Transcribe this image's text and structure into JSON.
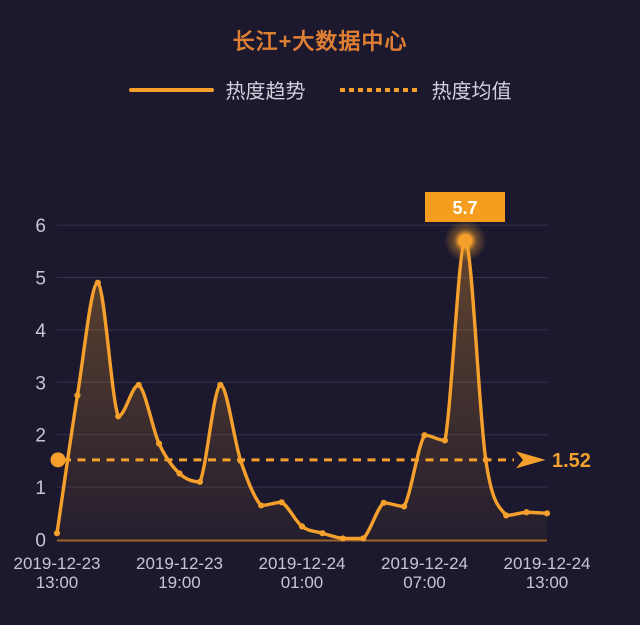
{
  "title": "长江+大数据中心",
  "legend": {
    "trend_label": "热度趋势",
    "mean_label": "热度均值"
  },
  "colors": {
    "background": "#1c192e",
    "title": "#de7f33",
    "accent": "#f5a02c",
    "legend_label": "#ced0da",
    "axis_label": "#c4c7d3",
    "grid": "#36334e",
    "axis_line": "#9a6226",
    "tooltip_bg": "#f59d1e",
    "tooltip_text": "#ffffff",
    "mean_label": "#f2a02e"
  },
  "chart_data": {
    "type": "line",
    "title": "长江+大数据中心",
    "xlabel": "",
    "ylabel": "",
    "ylim": [
      0,
      6
    ],
    "y_ticks": [
      0,
      1,
      2,
      3,
      4,
      5,
      6
    ],
    "grid": true,
    "legend_position": "top",
    "smooth": true,
    "x": [
      "2019-12-23 13:00",
      "2019-12-23 14:00",
      "2019-12-23 15:00",
      "2019-12-23 16:00",
      "2019-12-23 17:00",
      "2019-12-23 18:00",
      "2019-12-23 19:00",
      "2019-12-23 20:00",
      "2019-12-23 21:00",
      "2019-12-23 22:00",
      "2019-12-23 23:00",
      "2019-12-24 00:00",
      "2019-12-24 01:00",
      "2019-12-24 02:00",
      "2019-12-24 03:00",
      "2019-12-24 04:00",
      "2019-12-24 05:00",
      "2019-12-24 06:00",
      "2019-12-24 07:00",
      "2019-12-24 08:00",
      "2019-12-24 09:00",
      "2019-12-24 10:00",
      "2019-12-24 11:00",
      "2019-12-24 12:00",
      "2019-12-24 13:00"
    ],
    "series": [
      {
        "name": "热度趋势",
        "values": [
          0.12,
          2.75,
          4.9,
          2.35,
          2.95,
          1.83,
          1.26,
          1.1,
          2.95,
          1.5,
          0.65,
          0.71,
          0.25,
          0.12,
          0.02,
          0.02,
          0.7,
          0.63,
          1.99,
          1.89,
          5.7,
          1.52,
          0.46,
          0.52,
          0.5
        ]
      }
    ],
    "mean_line": {
      "name": "热度均值",
      "value": 1.52,
      "label": "1.52"
    },
    "peak_annotation": {
      "label": "5.7",
      "value": 5.7,
      "x": "2019-12-24 09:00",
      "index": 20
    },
    "x_tick_labels": [
      {
        "date": "2019-12-23",
        "time": "13:00"
      },
      {
        "date": "2019-12-23",
        "time": "19:00"
      },
      {
        "date": "2019-12-24",
        "time": "01:00"
      },
      {
        "date": "2019-12-24",
        "time": "07:00"
      },
      {
        "date": "2019-12-24",
        "time": "13:00"
      }
    ]
  }
}
